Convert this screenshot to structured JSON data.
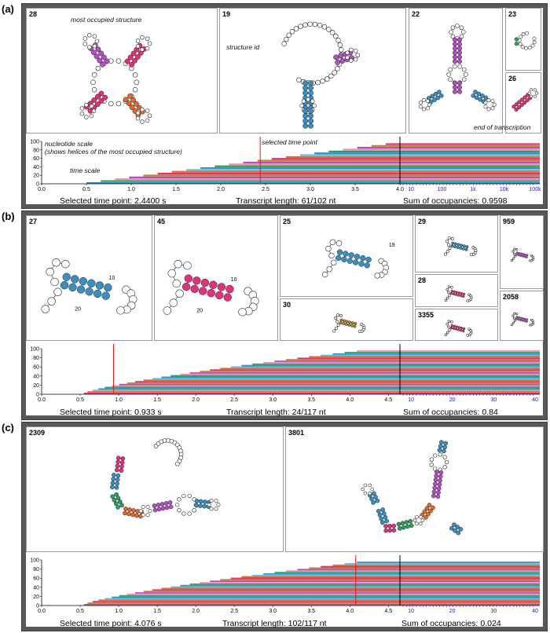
{
  "panels": [
    {
      "letter": "(a)",
      "structures": [
        {
          "id": "28",
          "color_set": [
            "#b44fc4",
            "#e0317a",
            "#e06a2c"
          ]
        },
        {
          "id": "19",
          "color_set": [
            "#3a8fc0",
            "#b44fc4"
          ]
        },
        {
          "id": "22",
          "color_set": [
            "#b44fc4",
            "#3a8fc0"
          ]
        },
        {
          "id": "23",
          "color_set": [
            "#2f9e61"
          ]
        },
        {
          "id": "26",
          "color_set": [
            "#e0317a"
          ]
        }
      ],
      "annotations": {
        "most_occupied": "most occupied structure",
        "structure_id": "structure id",
        "nucleotide_scale_1": "nucleotide scale",
        "nucleotide_scale_2": "(shows helices of the most occupied structure)",
        "time_scale": "time scale",
        "selected_time_point": "selected time point",
        "end_of_transcription": "end of transcription"
      },
      "y_ticks": [
        "100",
        "80",
        "60",
        "40",
        "20",
        "0"
      ],
      "x_ticks_linear": [
        "0.0",
        "0.5",
        "1.0",
        "1.5",
        "2.0",
        "2.5",
        "3.0",
        "3.5",
        "4.0"
      ],
      "x_ticks_log": [
        "10",
        "100",
        "1k",
        "10k",
        "100k"
      ],
      "status": {
        "selected_time": "Selected time point: 2.4400 s",
        "transcript_length": "Transcript length: 61/102 nt",
        "sum_occupancies": "Sum of occupancies: 0.9598"
      }
    },
    {
      "letter": "(b)",
      "structures": [
        {
          "id": "27"
        },
        {
          "id": "45"
        },
        {
          "id": "25"
        },
        {
          "id": "30"
        },
        {
          "id": "29"
        },
        {
          "id": "28"
        },
        {
          "id": "3355"
        },
        {
          "id": "959"
        },
        {
          "id": "2058"
        }
      ],
      "node_labels": {
        "ten": "10",
        "twenty": "20",
        "nineteen": "19"
      },
      "y_ticks": [
        "100",
        "80",
        "60",
        "40",
        "20",
        "0"
      ],
      "x_ticks_linear": [
        "0.0",
        "0.5",
        "1.0",
        "1.5",
        "2.0",
        "2.5",
        "3.0",
        "3.5",
        "4.0",
        "4.5"
      ],
      "x_ticks_log": [
        "10",
        "20",
        "30",
        "40"
      ],
      "status": {
        "selected_time": "Selected time point: 0.933 s",
        "transcript_length": "Transcript length: 24/117 nt",
        "sum_occupancies": "Sum of occupancies: 0.84"
      }
    },
    {
      "letter": "(c)",
      "structures": [
        {
          "id": "2309"
        },
        {
          "id": "3801"
        }
      ],
      "y_ticks": [
        "100",
        "80",
        "60",
        "40",
        "20",
        "0"
      ],
      "x_ticks_linear": [
        "0.0",
        "0.5",
        "1.0",
        "1.5",
        "2.0",
        "2.5",
        "3.0",
        "3.5",
        "4.0",
        "4.5"
      ],
      "x_ticks_log": [
        "10",
        "20",
        "30",
        "40"
      ],
      "status": {
        "selected_time": "Selected time point: 4.076 s",
        "transcript_length": "Transcript length: 102/117 nt",
        "sum_occupancies": "Sum of occupancies: 0.024"
      }
    }
  ],
  "colors": {
    "frame": "#585858",
    "selected_line": "#d62020",
    "end_line": "#000000",
    "log_tick": "#1a1ab8",
    "helix_palette": [
      "#e0317a",
      "#3a8fc0",
      "#b44fc4",
      "#e06a2c",
      "#2f9e61",
      "#b8862a",
      "#5bc0de",
      "#f08ab0"
    ]
  }
}
